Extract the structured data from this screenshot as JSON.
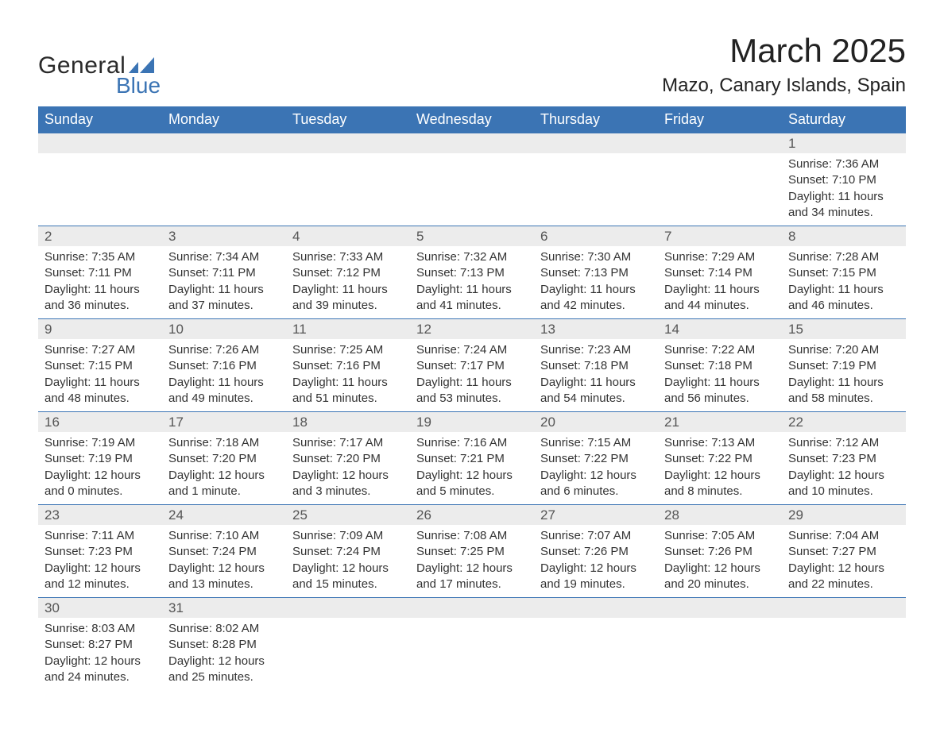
{
  "logo": {
    "text_general": "General",
    "text_blue": "Blue",
    "shape_color": "#3b74b4"
  },
  "header": {
    "month_title": "March 2025",
    "location": "Mazo, Canary Islands, Spain"
  },
  "colors": {
    "header_bg": "#3b74b4",
    "header_text": "#ffffff",
    "daynum_bg": "#ececec",
    "border": "#3b74b4",
    "body_text": "#333333"
  },
  "typography": {
    "month_title_fontsize": 42,
    "location_fontsize": 24,
    "header_fontsize": 18,
    "daynum_fontsize": 17,
    "cell_fontsize": 15
  },
  "days_of_week": [
    "Sunday",
    "Monday",
    "Tuesday",
    "Wednesday",
    "Thursday",
    "Friday",
    "Saturday"
  ],
  "weeks": [
    [
      null,
      null,
      null,
      null,
      null,
      null,
      {
        "n": "1",
        "sunrise": "Sunrise: 7:36 AM",
        "sunset": "Sunset: 7:10 PM",
        "day1": "Daylight: 11 hours",
        "day2": "and 34 minutes."
      }
    ],
    [
      {
        "n": "2",
        "sunrise": "Sunrise: 7:35 AM",
        "sunset": "Sunset: 7:11 PM",
        "day1": "Daylight: 11 hours",
        "day2": "and 36 minutes."
      },
      {
        "n": "3",
        "sunrise": "Sunrise: 7:34 AM",
        "sunset": "Sunset: 7:11 PM",
        "day1": "Daylight: 11 hours",
        "day2": "and 37 minutes."
      },
      {
        "n": "4",
        "sunrise": "Sunrise: 7:33 AM",
        "sunset": "Sunset: 7:12 PM",
        "day1": "Daylight: 11 hours",
        "day2": "and 39 minutes."
      },
      {
        "n": "5",
        "sunrise": "Sunrise: 7:32 AM",
        "sunset": "Sunset: 7:13 PM",
        "day1": "Daylight: 11 hours",
        "day2": "and 41 minutes."
      },
      {
        "n": "6",
        "sunrise": "Sunrise: 7:30 AM",
        "sunset": "Sunset: 7:13 PM",
        "day1": "Daylight: 11 hours",
        "day2": "and 42 minutes."
      },
      {
        "n": "7",
        "sunrise": "Sunrise: 7:29 AM",
        "sunset": "Sunset: 7:14 PM",
        "day1": "Daylight: 11 hours",
        "day2": "and 44 minutes."
      },
      {
        "n": "8",
        "sunrise": "Sunrise: 7:28 AM",
        "sunset": "Sunset: 7:15 PM",
        "day1": "Daylight: 11 hours",
        "day2": "and 46 minutes."
      }
    ],
    [
      {
        "n": "9",
        "sunrise": "Sunrise: 7:27 AM",
        "sunset": "Sunset: 7:15 PM",
        "day1": "Daylight: 11 hours",
        "day2": "and 48 minutes."
      },
      {
        "n": "10",
        "sunrise": "Sunrise: 7:26 AM",
        "sunset": "Sunset: 7:16 PM",
        "day1": "Daylight: 11 hours",
        "day2": "and 49 minutes."
      },
      {
        "n": "11",
        "sunrise": "Sunrise: 7:25 AM",
        "sunset": "Sunset: 7:16 PM",
        "day1": "Daylight: 11 hours",
        "day2": "and 51 minutes."
      },
      {
        "n": "12",
        "sunrise": "Sunrise: 7:24 AM",
        "sunset": "Sunset: 7:17 PM",
        "day1": "Daylight: 11 hours",
        "day2": "and 53 minutes."
      },
      {
        "n": "13",
        "sunrise": "Sunrise: 7:23 AM",
        "sunset": "Sunset: 7:18 PM",
        "day1": "Daylight: 11 hours",
        "day2": "and 54 minutes."
      },
      {
        "n": "14",
        "sunrise": "Sunrise: 7:22 AM",
        "sunset": "Sunset: 7:18 PM",
        "day1": "Daylight: 11 hours",
        "day2": "and 56 minutes."
      },
      {
        "n": "15",
        "sunrise": "Sunrise: 7:20 AM",
        "sunset": "Sunset: 7:19 PM",
        "day1": "Daylight: 11 hours",
        "day2": "and 58 minutes."
      }
    ],
    [
      {
        "n": "16",
        "sunrise": "Sunrise: 7:19 AM",
        "sunset": "Sunset: 7:19 PM",
        "day1": "Daylight: 12 hours",
        "day2": "and 0 minutes."
      },
      {
        "n": "17",
        "sunrise": "Sunrise: 7:18 AM",
        "sunset": "Sunset: 7:20 PM",
        "day1": "Daylight: 12 hours",
        "day2": "and 1 minute."
      },
      {
        "n": "18",
        "sunrise": "Sunrise: 7:17 AM",
        "sunset": "Sunset: 7:20 PM",
        "day1": "Daylight: 12 hours",
        "day2": "and 3 minutes."
      },
      {
        "n": "19",
        "sunrise": "Sunrise: 7:16 AM",
        "sunset": "Sunset: 7:21 PM",
        "day1": "Daylight: 12 hours",
        "day2": "and 5 minutes."
      },
      {
        "n": "20",
        "sunrise": "Sunrise: 7:15 AM",
        "sunset": "Sunset: 7:22 PM",
        "day1": "Daylight: 12 hours",
        "day2": "and 6 minutes."
      },
      {
        "n": "21",
        "sunrise": "Sunrise: 7:13 AM",
        "sunset": "Sunset: 7:22 PM",
        "day1": "Daylight: 12 hours",
        "day2": "and 8 minutes."
      },
      {
        "n": "22",
        "sunrise": "Sunrise: 7:12 AM",
        "sunset": "Sunset: 7:23 PM",
        "day1": "Daylight: 12 hours",
        "day2": "and 10 minutes."
      }
    ],
    [
      {
        "n": "23",
        "sunrise": "Sunrise: 7:11 AM",
        "sunset": "Sunset: 7:23 PM",
        "day1": "Daylight: 12 hours",
        "day2": "and 12 minutes."
      },
      {
        "n": "24",
        "sunrise": "Sunrise: 7:10 AM",
        "sunset": "Sunset: 7:24 PM",
        "day1": "Daylight: 12 hours",
        "day2": "and 13 minutes."
      },
      {
        "n": "25",
        "sunrise": "Sunrise: 7:09 AM",
        "sunset": "Sunset: 7:24 PM",
        "day1": "Daylight: 12 hours",
        "day2": "and 15 minutes."
      },
      {
        "n": "26",
        "sunrise": "Sunrise: 7:08 AM",
        "sunset": "Sunset: 7:25 PM",
        "day1": "Daylight: 12 hours",
        "day2": "and 17 minutes."
      },
      {
        "n": "27",
        "sunrise": "Sunrise: 7:07 AM",
        "sunset": "Sunset: 7:26 PM",
        "day1": "Daylight: 12 hours",
        "day2": "and 19 minutes."
      },
      {
        "n": "28",
        "sunrise": "Sunrise: 7:05 AM",
        "sunset": "Sunset: 7:26 PM",
        "day1": "Daylight: 12 hours",
        "day2": "and 20 minutes."
      },
      {
        "n": "29",
        "sunrise": "Sunrise: 7:04 AM",
        "sunset": "Sunset: 7:27 PM",
        "day1": "Daylight: 12 hours",
        "day2": "and 22 minutes."
      }
    ],
    [
      {
        "n": "30",
        "sunrise": "Sunrise: 8:03 AM",
        "sunset": "Sunset: 8:27 PM",
        "day1": "Daylight: 12 hours",
        "day2": "and 24 minutes."
      },
      {
        "n": "31",
        "sunrise": "Sunrise: 8:02 AM",
        "sunset": "Sunset: 8:28 PM",
        "day1": "Daylight: 12 hours",
        "day2": "and 25 minutes."
      },
      null,
      null,
      null,
      null,
      null
    ]
  ]
}
